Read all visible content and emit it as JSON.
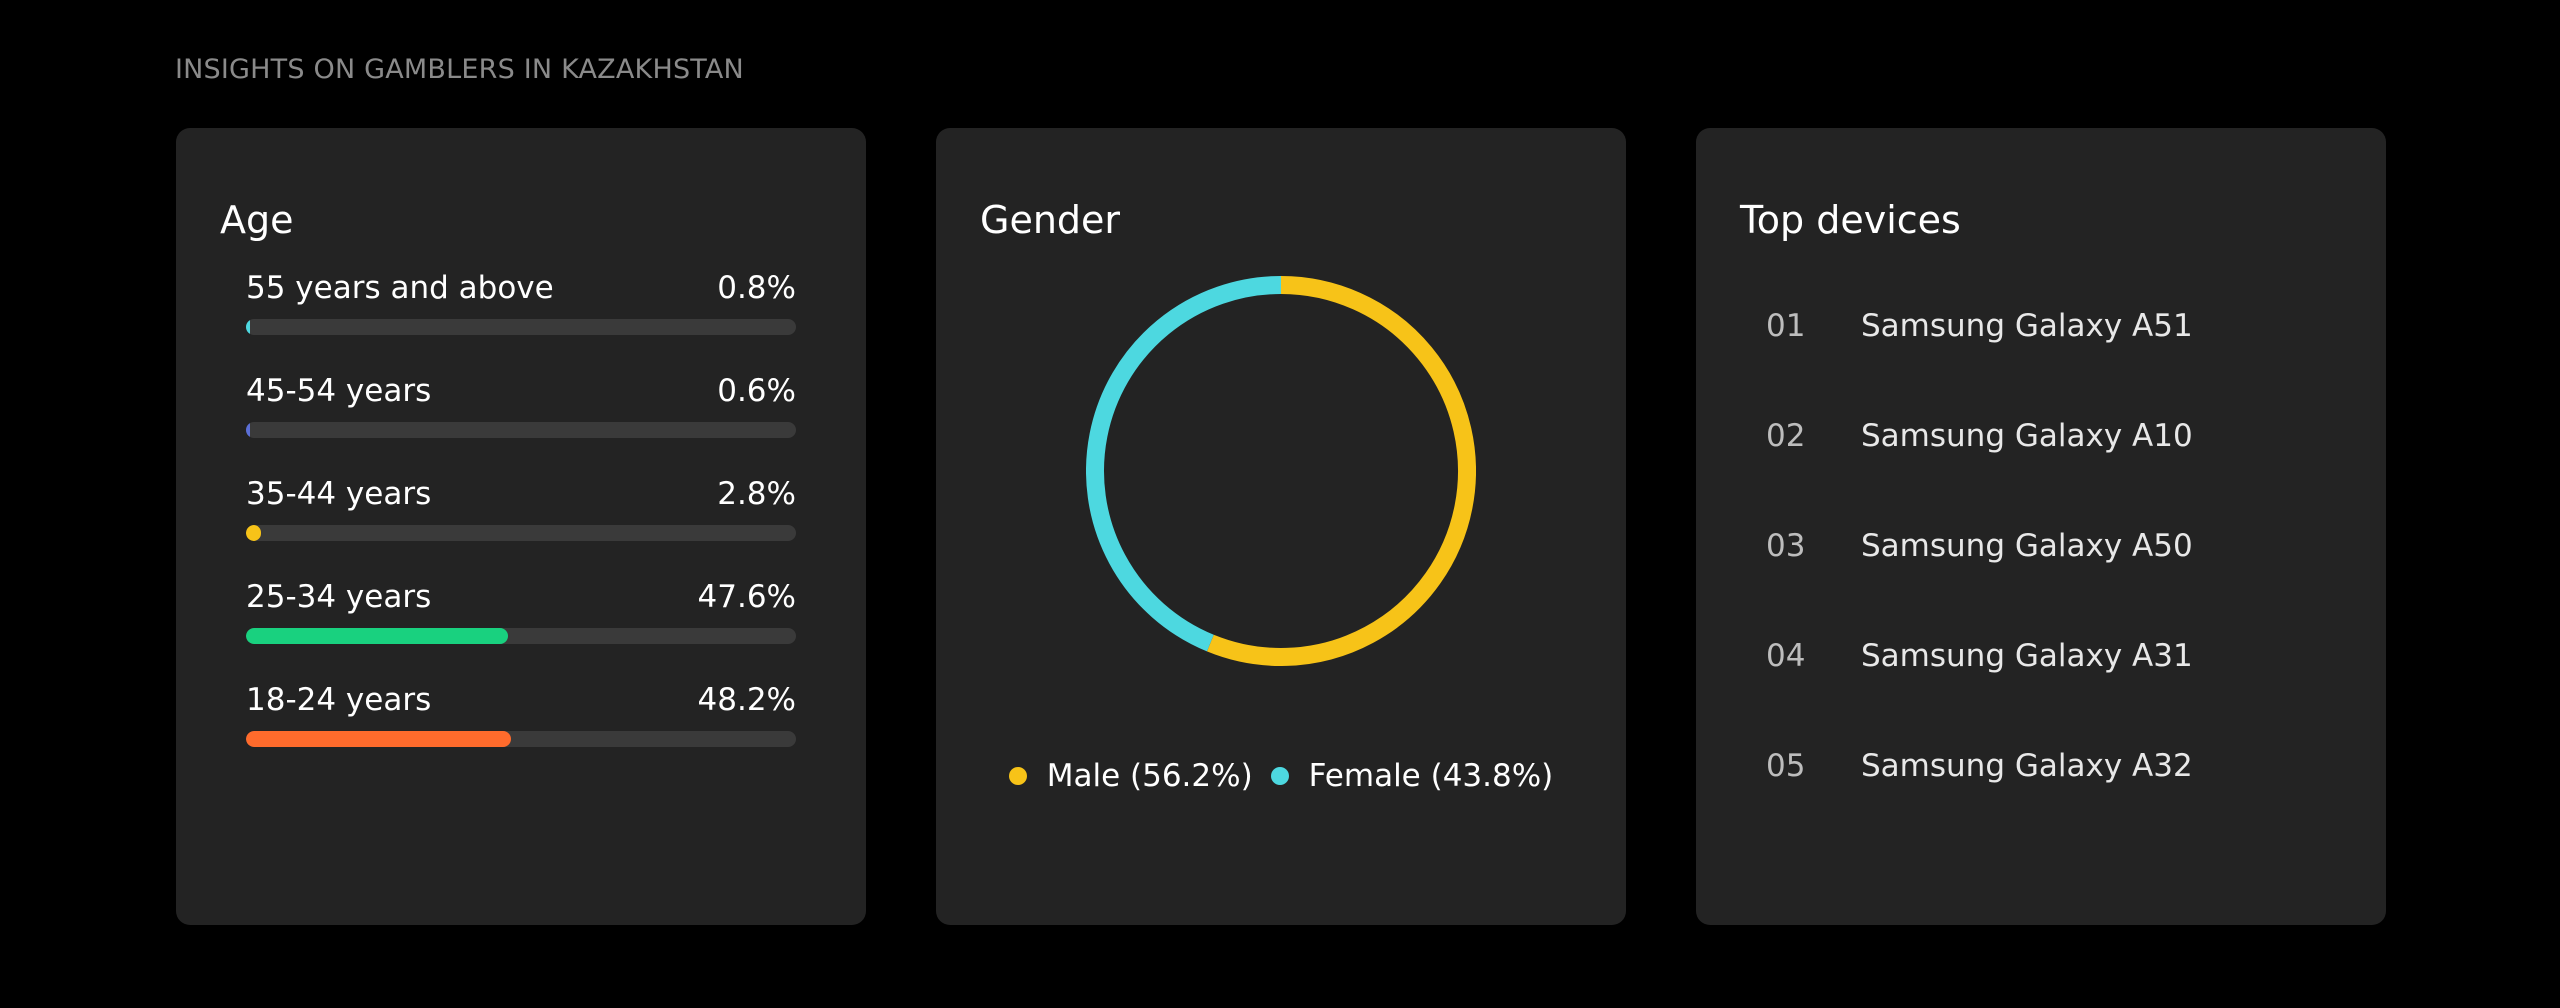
{
  "header": {
    "title": "INSIGHTS ON GAMBLERS IN KAZAKHSTAN"
  },
  "age": {
    "title": "Age",
    "rows": [
      {
        "label": "55 years and above",
        "value_text": "0.8%",
        "value": 0.8,
        "color": "#4dd8e0"
      },
      {
        "label": "45-54 years",
        "value_text": "0.6%",
        "value": 0.6,
        "color": "#5b6fd6"
      },
      {
        "label": "35-44 years",
        "value_text": "2.8%",
        "value": 2.8,
        "color": "#f7c318"
      },
      {
        "label": "25-34 years",
        "value_text": "47.6%",
        "value": 47.6,
        "color": "#19d17f"
      },
      {
        "label": "18-24 years",
        "value_text": "48.2%",
        "value": 48.2,
        "color": "#ff6b2c"
      }
    ]
  },
  "gender": {
    "title": "Gender",
    "legend": [
      {
        "label": "Male (56.2%)",
        "color": "#f7c318"
      },
      {
        "label": "Female (43.8%)",
        "color": "#4dd8e0"
      }
    ]
  },
  "devices": {
    "title": "Top devices",
    "items": [
      {
        "rank": "01",
        "name": "Samsung Galaxy A51"
      },
      {
        "rank": "02",
        "name": "Samsung Galaxy A10"
      },
      {
        "rank": "03",
        "name": "Samsung Galaxy A50"
      },
      {
        "rank": "04",
        "name": "Samsung Galaxy A31"
      },
      {
        "rank": "05",
        "name": "Samsung Galaxy A32"
      }
    ]
  },
  "chart_data": [
    {
      "type": "bar",
      "title": "Age",
      "categories": [
        "55 years and above",
        "45-54 years",
        "35-44 years",
        "25-34 years",
        "18-24 years"
      ],
      "values": [
        0.8,
        0.6,
        2.8,
        47.6,
        48.2
      ],
      "ylim": [
        0,
        100
      ]
    },
    {
      "type": "pie",
      "title": "Gender",
      "categories": [
        "Male",
        "Female"
      ],
      "values": [
        56.2,
        43.8
      ],
      "colors": [
        "#f7c318",
        "#4dd8e0"
      ]
    }
  ]
}
